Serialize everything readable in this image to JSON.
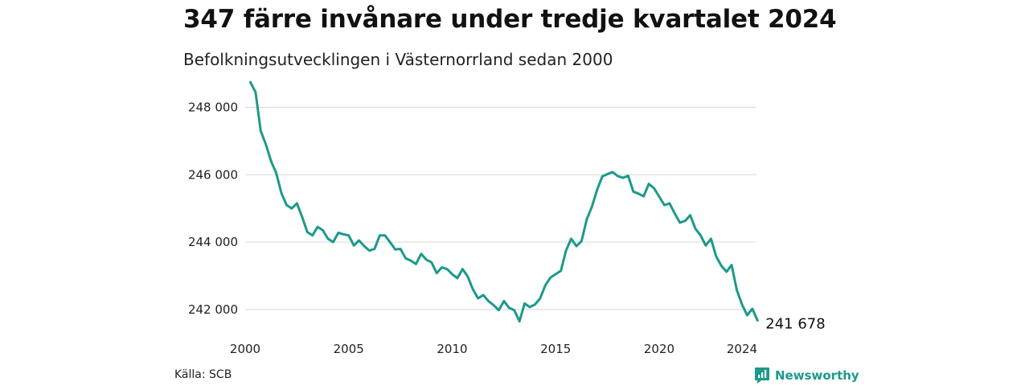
{
  "title": "347 färre invånare under tredje kvartalet 2024",
  "subtitle": "Befolkningsutvecklingen i Västernorrland sedan 2000",
  "source": "Källa: SCB",
  "brand": {
    "name": "Newsworthy",
    "icon": "newsworthy-logo-icon",
    "color": "#1b9a8a"
  },
  "chart_data": {
    "type": "line",
    "line_color": "#1b9a8a",
    "grid": "horizontal",
    "ylim": [
      241400,
      248800
    ],
    "xlim": [
      2000,
      2024.7
    ],
    "yticks": [
      242000,
      244000,
      246000,
      248000
    ],
    "ytick_labels": [
      "242 000",
      "244 000",
      "246 000",
      "248 000"
    ],
    "xticks": [
      2000,
      2005,
      2010,
      2015,
      2020,
      2024
    ],
    "xtick_labels": [
      "2000",
      "2005",
      "2010",
      "2015",
      "2020",
      "2024"
    ],
    "end_label": "241 678",
    "series": [
      {
        "x": [
          2000.25,
          2000.5,
          2000.75,
          2001.0,
          2001.25,
          2001.5,
          2001.75,
          2002.0,
          2002.25,
          2002.5,
          2002.75,
          2003.0,
          2003.25,
          2003.5,
          2003.75,
          2004.0,
          2004.25,
          2004.5,
          2004.75,
          2005.0,
          2005.25,
          2005.5,
          2005.75,
          2006.0,
          2006.25,
          2006.5,
          2006.75,
          2007.0,
          2007.25,
          2007.5,
          2007.75,
          2008.0,
          2008.25,
          2008.5,
          2008.75,
          2009.0,
          2009.25,
          2009.5,
          2009.75,
          2010.0,
          2010.25,
          2010.5,
          2010.75,
          2011.0,
          2011.25,
          2011.5,
          2011.75,
          2012.0,
          2012.25,
          2012.5,
          2012.75,
          2013.0,
          2013.25,
          2013.5,
          2013.75,
          2014.0,
          2014.25,
          2014.5,
          2014.75,
          2015.0,
          2015.25,
          2015.5,
          2015.75,
          2016.0,
          2016.25,
          2016.5,
          2016.75,
          2017.0,
          2017.25,
          2017.5,
          2017.75,
          2018.0,
          2018.25,
          2018.5,
          2018.75,
          2019.0,
          2019.25,
          2019.5,
          2019.75,
          2020.0,
          2020.25,
          2020.5,
          2020.75,
          2021.0,
          2021.25,
          2021.5,
          2021.75,
          2022.0,
          2022.25,
          2022.5,
          2022.75,
          2023.0,
          2023.25,
          2023.5,
          2023.75,
          2024.0,
          2024.25,
          2024.5,
          2024.75
        ],
        "y": [
          248750,
          248450,
          247300,
          246900,
          246400,
          246050,
          245450,
          245100,
          245000,
          245150,
          244750,
          244300,
          244200,
          244450,
          244350,
          244100,
          244000,
          244280,
          244230,
          244200,
          243900,
          244050,
          243880,
          243750,
          243800,
          244200,
          244200,
          244000,
          243780,
          243800,
          243520,
          243450,
          243350,
          243650,
          243480,
          243400,
          243080,
          243250,
          243200,
          243050,
          242930,
          243200,
          242980,
          242600,
          242330,
          242430,
          242250,
          242130,
          241980,
          242250,
          242050,
          241980,
          241650,
          242180,
          242070,
          242150,
          242330,
          242720,
          242950,
          243050,
          243150,
          243750,
          244100,
          243880,
          244030,
          244680,
          245050,
          245550,
          245950,
          246020,
          246080,
          245960,
          245910,
          245970,
          245500,
          245440,
          245360,
          245730,
          245600,
          245350,
          245100,
          245150,
          244850,
          244580,
          244630,
          244800,
          244400,
          244200,
          243900,
          244100,
          243580,
          243300,
          243120,
          243320,
          242580,
          242150,
          241830,
          242020,
          241678
        ]
      }
    ]
  }
}
